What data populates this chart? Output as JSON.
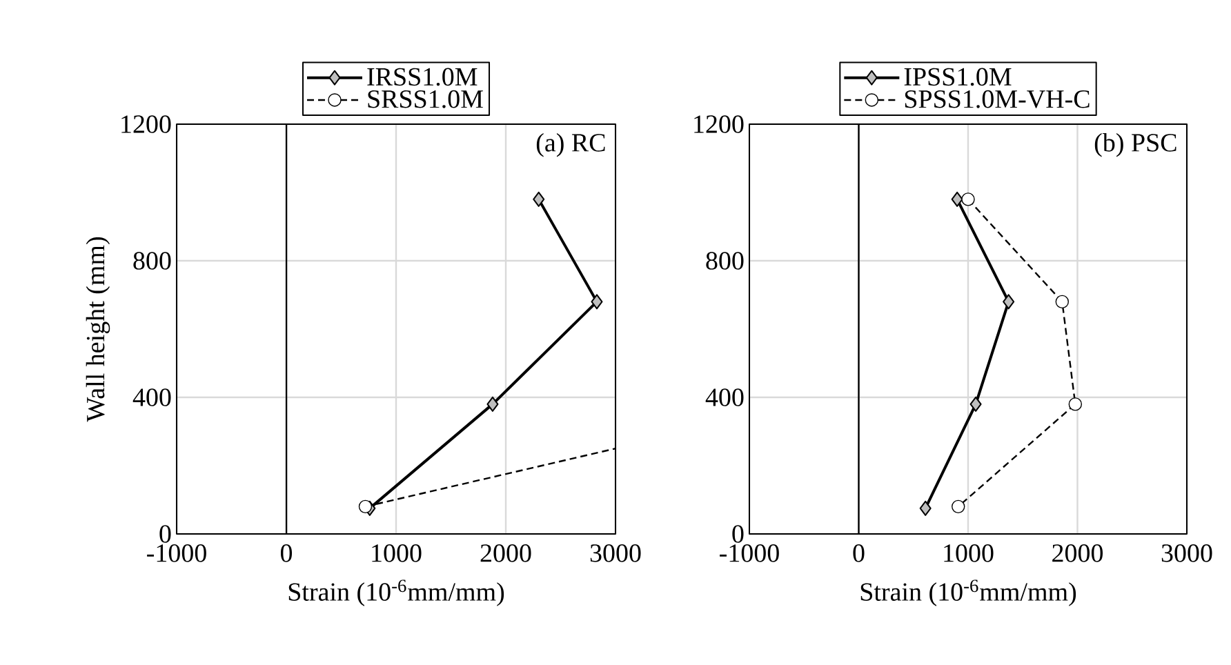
{
  "chart_data": [
    {
      "type": "line",
      "xlabel": "Strain (10$^{-6}$mm/mm)",
      "ylabel": "Wall height (mm)",
      "annotations": [
        "(a) RC"
      ],
      "xlim": [
        -1000,
        3000
      ],
      "xticks": [
        -1000,
        0,
        1000,
        2000,
        3000
      ],
      "ylim": [
        0,
        1200
      ],
      "yticks": [
        0,
        400,
        800,
        1200
      ],
      "grid": true,
      "legend": "top",
      "ref_lines": [
        {
          "axis": "x",
          "value": 0,
          "color": "#000000"
        }
      ],
      "series": [
        {
          "name": "IRSS1.0M",
          "color": "#000000",
          "marker": "diamond",
          "line_style": "solid",
          "x": [
            2300,
            2830,
            1880,
            760
          ],
          "values": [
            980,
            680,
            380,
            75
          ]
        },
        {
          "name": "SRSS1.0M",
          "color": "#000000",
          "marker": "circle",
          "line_style": "dashed",
          "x": [
            720,
            3000
          ],
          "values": [
            80,
            250
          ]
        }
      ]
    },
    {
      "type": "line",
      "xlabel": "Strain (10$^{-6}$mm/mm)",
      "annotations": [
        "(b) PSC"
      ],
      "xlim": [
        -1000,
        3000
      ],
      "xticks": [
        -1000,
        0,
        1000,
        2000,
        3000
      ],
      "ylim": [
        0,
        1200
      ],
      "yticks": [
        0,
        400,
        800,
        1200
      ],
      "grid": true,
      "legend": "top",
      "ref_lines": [
        {
          "axis": "x",
          "value": 0,
          "color": "#000000"
        }
      ],
      "series": [
        {
          "name": "IPSS1.0M",
          "color": "#000000",
          "marker": "diamond",
          "line_style": "solid",
          "x": [
            900,
            1370,
            1070,
            610
          ],
          "values": [
            980,
            680,
            380,
            75
          ]
        },
        {
          "name": "SPSS1.0M-VH-C",
          "color": "#000000",
          "marker": "circle",
          "line_style": "dashed",
          "x": [
            1000,
            1860,
            1980,
            910
          ],
          "values": [
            980,
            680,
            380,
            80
          ]
        }
      ]
    }
  ]
}
